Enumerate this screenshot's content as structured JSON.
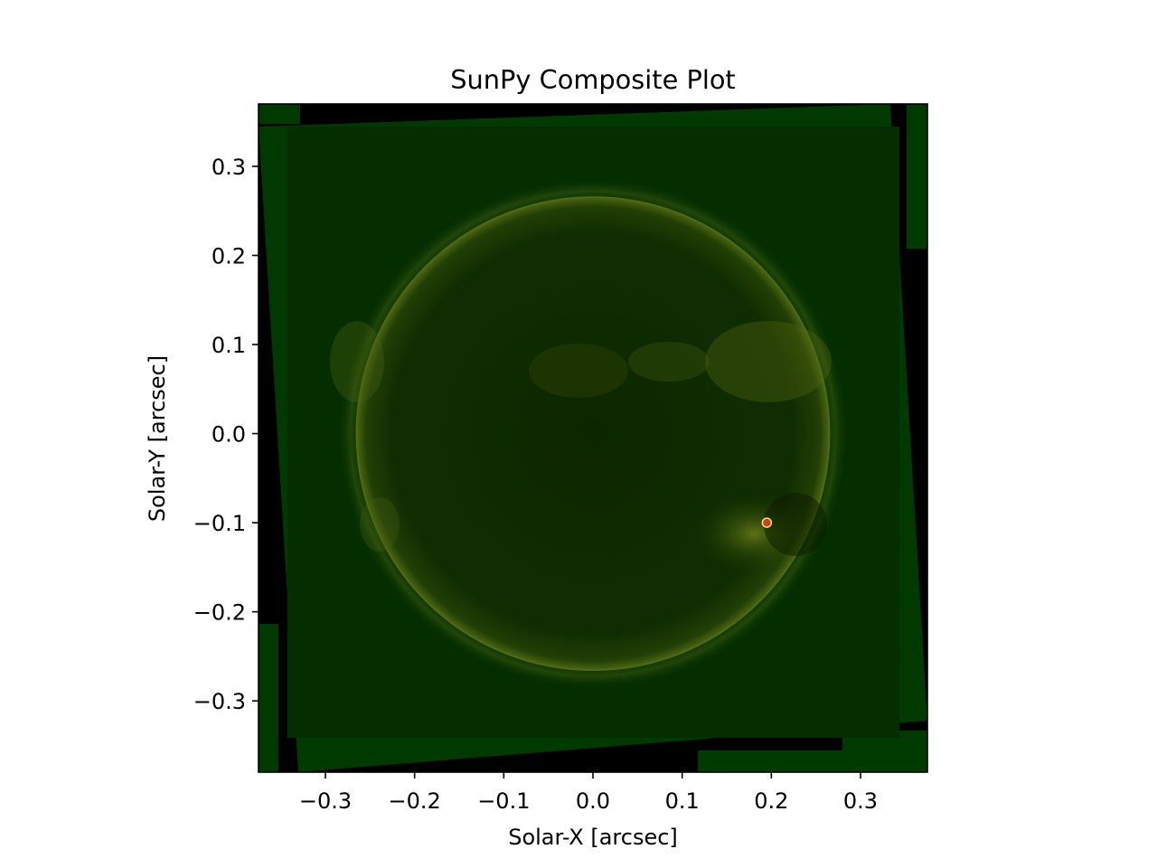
{
  "chart_data": {
    "type": "heatmap",
    "title": "SunPy Composite Plot",
    "xlabel": "Solar-X [arcsec]",
    "ylabel": "Solar-Y [arcsec]",
    "xlim": [
      -0.375,
      0.375
    ],
    "ylim": [
      -0.38,
      0.37
    ],
    "x_ticks": [
      -0.3,
      -0.2,
      -0.1,
      0.0,
      0.1,
      0.2,
      0.3
    ],
    "x_tick_labels": [
      "−0.3",
      "−0.2",
      "−0.1",
      "0.0",
      "0.1",
      "0.2",
      "0.3"
    ],
    "y_ticks": [
      0.3,
      0.2,
      0.1,
      0.0,
      -0.1,
      -0.2,
      -0.3
    ],
    "y_tick_labels": [
      "0.3",
      "0.2",
      "0.1",
      "0.0",
      "−0.1",
      "−0.2",
      "−0.3"
    ],
    "grid": false,
    "solar_disk": {
      "center": [
        0.0,
        0.0
      ],
      "radius": 0.265
    },
    "active_region": {
      "center": [
        0.195,
        -0.1
      ]
    },
    "colors": {
      "background": "#003a00",
      "disk": "#0b2a00",
      "limb": "#5a7a10",
      "frame_gap": "#000000",
      "active_region": "#d04010"
    }
  }
}
